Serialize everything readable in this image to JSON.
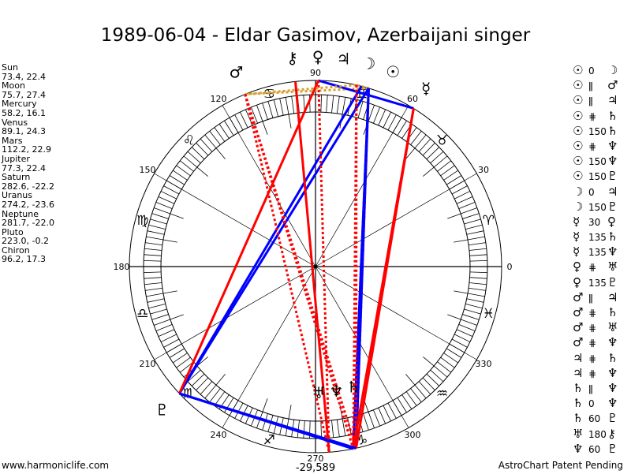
{
  "title": "1989-06-04 - Eldar Gasimov, Azerbaijani singer",
  "footer": {
    "left": "www.harmoniclife.com",
    "right": "AstroChart Patent Pending"
  },
  "bottom_value": "-29,589",
  "colors": {
    "hard": "#ff0000",
    "soft": "#0000ff",
    "contraparallel": "#ff0000",
    "parallel": "#d4a030",
    "ring": "#000000"
  },
  "degree_labels": [
    "0",
    "30",
    "60",
    "90",
    "120",
    "150",
    "180",
    "210",
    "240",
    "270",
    "300",
    "330"
  ],
  "zodiac": [
    "♈",
    "♉",
    "♊",
    "♋",
    "♌",
    "♍",
    "♎",
    "♏",
    "♐",
    "♑",
    "♒",
    "♓"
  ],
  "planets": [
    {
      "key": "sun",
      "name": "Sun",
      "glyph": "☉",
      "lon": 73.4,
      "decl": 22.4,
      "label": "73.4, 22.4"
    },
    {
      "key": "moon",
      "name": "Moon",
      "glyph": "☽",
      "lon": 75.7,
      "decl": 27.4,
      "label": "75.7, 27.4"
    },
    {
      "key": "mercury",
      "name": "Mercury",
      "glyph": "☿",
      "lon": 58.2,
      "decl": 16.1,
      "label": "58.2, 16.1"
    },
    {
      "key": "venus",
      "name": "Venus",
      "glyph": "♀",
      "lon": 89.1,
      "decl": 24.3,
      "label": "89.1, 24.3"
    },
    {
      "key": "mars",
      "name": "Mars",
      "glyph": "♂",
      "lon": 112.2,
      "decl": 22.9,
      "label": "112.2, 22.9"
    },
    {
      "key": "jupiter",
      "name": "Jupiter",
      "glyph": "♃",
      "lon": 77.3,
      "decl": 22.4,
      "label": "77.3, 22.4"
    },
    {
      "key": "saturn",
      "name": "Saturn",
      "glyph": "♄",
      "lon": 282.6,
      "decl": -22.2,
      "label": "282.6, -22.2"
    },
    {
      "key": "uranus",
      "name": "Uranus",
      "glyph": "♅",
      "lon": 274.2,
      "decl": -23.6,
      "label": "274.2, -23.6"
    },
    {
      "key": "neptune",
      "name": "Neptune",
      "glyph": "♆",
      "lon": 281.7,
      "decl": -22.0,
      "label": "281.7, -22.0"
    },
    {
      "key": "pluto",
      "name": "Pluto",
      "glyph": "♇",
      "lon": 223.0,
      "decl": -0.2,
      "label": "223.0, -0.2"
    },
    {
      "key": "chiron",
      "name": "Chiron",
      "glyph": "⚷",
      "lon": 96.2,
      "decl": 17.3,
      "label": "96.2, 17.3"
    }
  ],
  "aspects": [
    {
      "p1": "sun",
      "sym": "0",
      "p2": "moon",
      "type": "conj"
    },
    {
      "p1": "sun",
      "sym": "ǁ",
      "p2": "mars",
      "type": "parallel"
    },
    {
      "p1": "sun",
      "sym": "ǁ",
      "p2": "jupiter",
      "type": "parallel"
    },
    {
      "p1": "sun",
      "sym": "⋕",
      "p2": "saturn",
      "type": "contraparallel"
    },
    {
      "p1": "sun",
      "sym": "150",
      "p2": "saturn",
      "type": "soft"
    },
    {
      "p1": "sun",
      "sym": "⋕",
      "p2": "neptune",
      "type": "contraparallel"
    },
    {
      "p1": "sun",
      "sym": "150",
      "p2": "neptune",
      "type": "soft"
    },
    {
      "p1": "sun",
      "sym": "150",
      "p2": "pluto",
      "type": "soft"
    },
    {
      "p1": "moon",
      "sym": "0",
      "p2": "jupiter",
      "type": "conj"
    },
    {
      "p1": "moon",
      "sym": "150",
      "p2": "pluto",
      "type": "soft"
    },
    {
      "p1": "mercury",
      "sym": "30",
      "p2": "venus",
      "type": "soft"
    },
    {
      "p1": "mercury",
      "sym": "135",
      "p2": "saturn",
      "type": "hard"
    },
    {
      "p1": "mercury",
      "sym": "135",
      "p2": "neptune",
      "type": "hard"
    },
    {
      "p1": "venus",
      "sym": "⋕",
      "p2": "uranus",
      "type": "contraparallel"
    },
    {
      "p1": "venus",
      "sym": "135",
      "p2": "pluto",
      "type": "hard"
    },
    {
      "p1": "mars",
      "sym": "ǁ",
      "p2": "jupiter",
      "type": "parallel"
    },
    {
      "p1": "mars",
      "sym": "⋕",
      "p2": "saturn",
      "type": "contraparallel"
    },
    {
      "p1": "mars",
      "sym": "⋕",
      "p2": "uranus",
      "type": "contraparallel"
    },
    {
      "p1": "mars",
      "sym": "⋕",
      "p2": "neptune",
      "type": "contraparallel"
    },
    {
      "p1": "jupiter",
      "sym": "⋕",
      "p2": "saturn",
      "type": "contraparallel"
    },
    {
      "p1": "jupiter",
      "sym": "⋕",
      "p2": "neptune",
      "type": "contraparallel"
    },
    {
      "p1": "saturn",
      "sym": "ǁ",
      "p2": "neptune",
      "type": "parallel"
    },
    {
      "p1": "saturn",
      "sym": "0",
      "p2": "neptune",
      "type": "conj"
    },
    {
      "p1": "saturn",
      "sym": "60",
      "p2": "pluto",
      "type": "soft"
    },
    {
      "p1": "uranus",
      "sym": "180",
      "p2": "chiron",
      "type": "hard"
    },
    {
      "p1": "neptune",
      "sym": "60",
      "p2": "pluto",
      "type": "soft"
    }
  ]
}
